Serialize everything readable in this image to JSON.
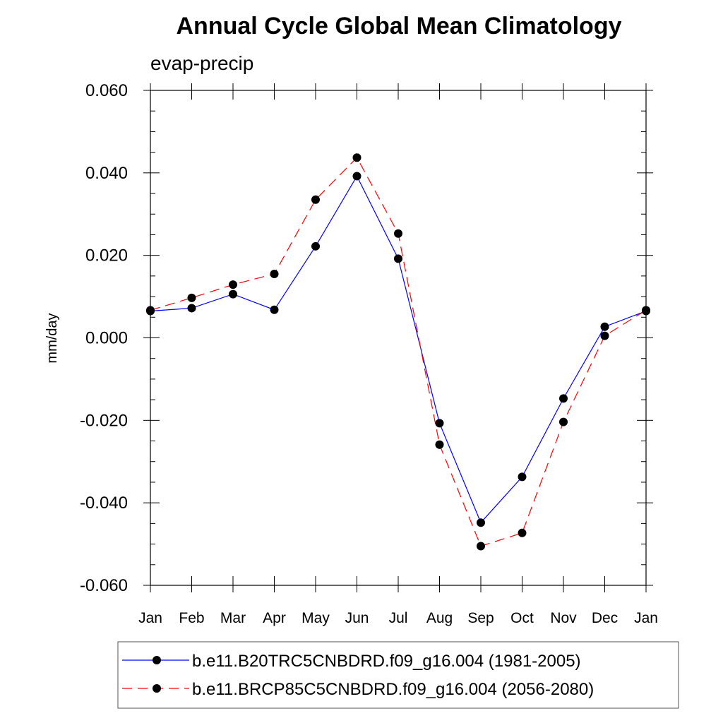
{
  "chart_data": {
    "type": "line",
    "title": "Annual Cycle Global Mean Climatology",
    "subtitle": "evap-precip",
    "xlabel": "",
    "ylabel": "mm/day",
    "categories": [
      "Jan",
      "Feb",
      "Mar",
      "Apr",
      "May",
      "Jun",
      "Jul",
      "Aug",
      "Sep",
      "Oct",
      "Nov",
      "Dec",
      "Jan"
    ],
    "ylim": [
      -0.06,
      0.06
    ],
    "yticks": [
      0.06,
      0.04,
      0.02,
      0.0,
      -0.02,
      -0.04,
      -0.06
    ],
    "ytick_labels": [
      "0.060",
      "0.040",
      "0.020",
      "0.000",
      "-0.020",
      "-0.040",
      "-0.060"
    ],
    "grid": false,
    "legend_position": "bottom",
    "series": [
      {
        "name": "b.e11.B20TRC5CNBDRD.f09_g16.004 (1981-2005)",
        "color": "#0000ff",
        "dash": "solid",
        "values": [
          0.0065,
          0.0072,
          0.0106,
          0.0068,
          0.0222,
          0.0392,
          0.0192,
          -0.0207,
          -0.0448,
          -0.0337,
          -0.0147,
          0.0027,
          0.0065
        ]
      },
      {
        "name": "b.e11.BRCP85C5CNBDRD.f09_g16.004 (2056-2080)",
        "color": "#ff0000",
        "dash": "dashed",
        "values": [
          0.0067,
          0.0097,
          0.0129,
          0.0155,
          0.0335,
          0.0437,
          0.0253,
          -0.0259,
          -0.0505,
          -0.0473,
          -0.0204,
          0.0005,
          0.0067
        ]
      }
    ]
  }
}
